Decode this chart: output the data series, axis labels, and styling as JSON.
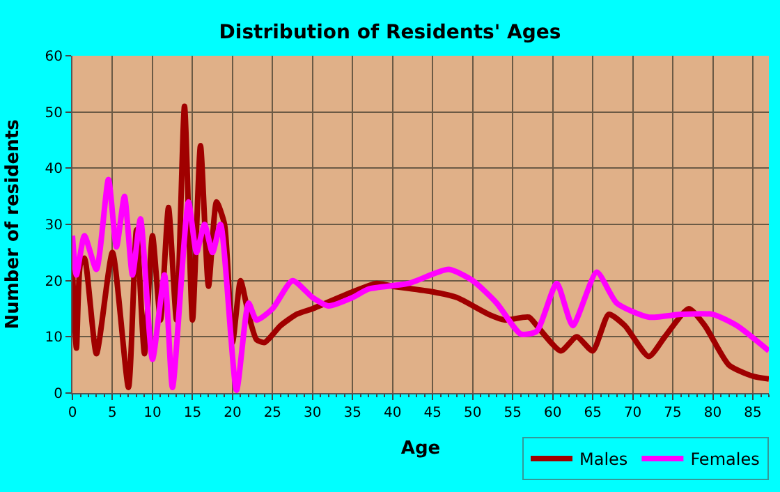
{
  "chart_data": {
    "type": "line",
    "title": "Distribution of Residents' Ages",
    "xlabel": "Age",
    "ylabel": "Number of residents",
    "xlim": [
      0,
      87
    ],
    "xticks": [
      0,
      5,
      10,
      15,
      20,
      25,
      30,
      35,
      40,
      45,
      50,
      55,
      60,
      65,
      70,
      75,
      80,
      85
    ],
    "ylim": [
      0,
      60
    ],
    "yticks": [
      0,
      10,
      20,
      30,
      40,
      50,
      60
    ],
    "grid": true,
    "legend": "bottom right",
    "marker": "none",
    "line_style": "solid",
    "series": [
      {
        "name": "Males",
        "color": "#a00000",
        "x": [
          0,
          0.5,
          1,
          1.5,
          3,
          5,
          7,
          8,
          9,
          10,
          11,
          12,
          13,
          14,
          15,
          16,
          17,
          18,
          19,
          20,
          21,
          22,
          23,
          24,
          26,
          28,
          30,
          35,
          38,
          40,
          45,
          48,
          52,
          54,
          57,
          58,
          61,
          63,
          65,
          67,
          69,
          72,
          74,
          77,
          79,
          82,
          85,
          87
        ],
        "values": [
          22,
          8,
          23,
          24,
          7,
          25,
          1,
          29,
          7,
          28,
          13,
          33,
          13,
          51,
          13,
          44,
          19,
          34,
          30,
          9,
          20,
          14,
          9.5,
          9,
          12,
          14,
          15,
          18,
          19.5,
          19,
          18,
          17,
          14,
          13,
          13.5,
          12,
          7.5,
          10,
          7.5,
          14,
          12,
          6.5,
          10,
          15,
          12,
          5,
          3,
          2.5
        ]
      },
      {
        "name": "Females",
        "color": "#ff00ff",
        "x": [
          0,
          0.5,
          1.5,
          3,
          4.5,
          5.5,
          6.5,
          7.5,
          8.5,
          10,
          11.5,
          12.5,
          14.5,
          15.5,
          16.5,
          17.5,
          18.5,
          20.5,
          22,
          23,
          25,
          27.5,
          30,
          32,
          35,
          37,
          42,
          47,
          50,
          53,
          56,
          58,
          60.5,
          62.5,
          65.5,
          68,
          72,
          76,
          80,
          83,
          87
        ],
        "values": [
          28,
          21,
          28,
          22,
          38,
          26,
          35,
          21,
          31,
          6,
          21,
          1,
          34,
          25,
          30,
          25,
          30,
          0.5,
          16,
          13,
          15,
          20,
          17,
          15.5,
          17,
          18.5,
          19.5,
          22,
          20,
          16,
          10.5,
          11,
          19.5,
          12,
          21.5,
          16,
          13.5,
          14,
          14,
          12,
          7.5
        ]
      }
    ]
  }
}
